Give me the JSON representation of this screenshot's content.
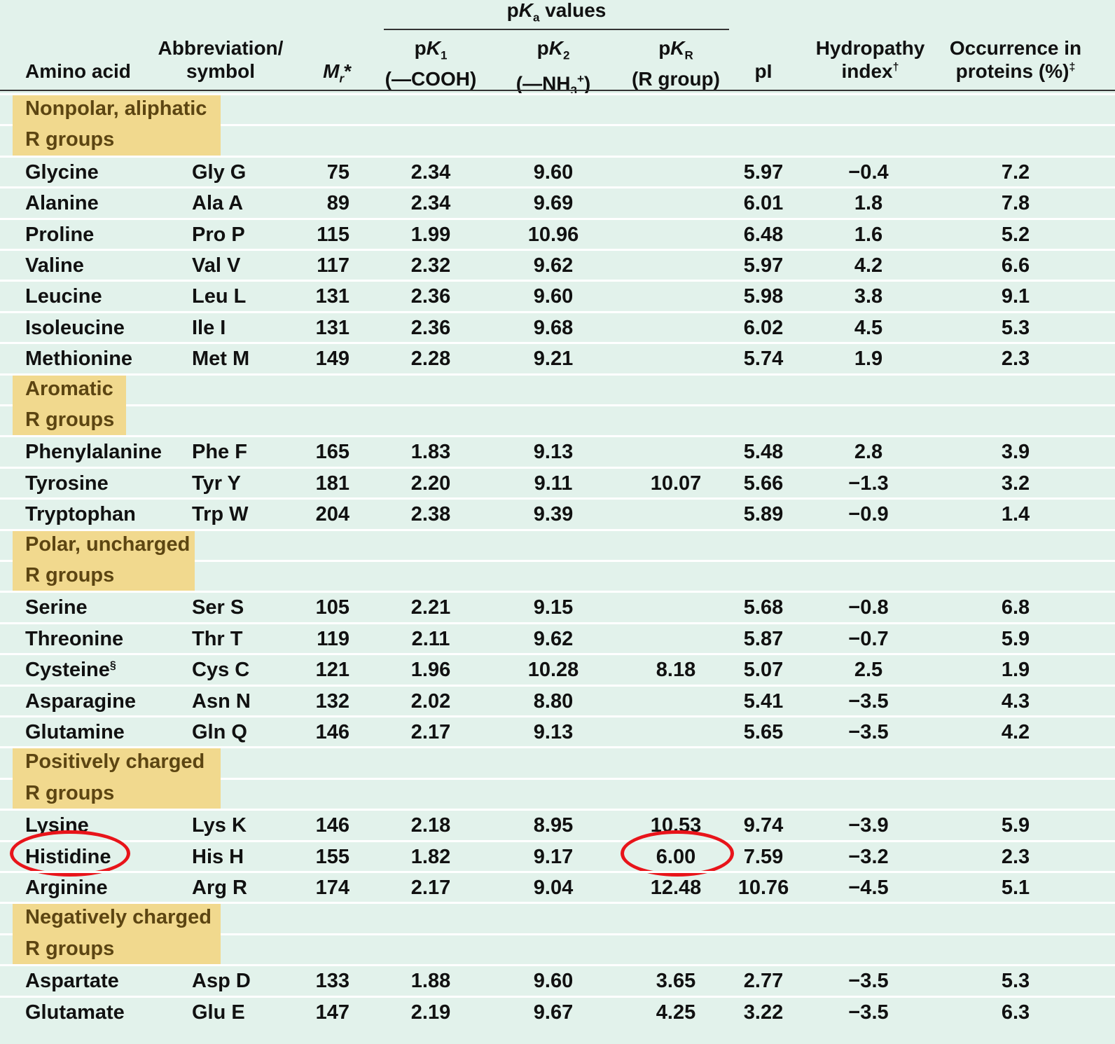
{
  "header": {
    "pka_group": {
      "p": "p",
      "K": "K",
      "sub": "a",
      "rest": " values"
    },
    "amino_acid": "Amino acid",
    "abbreviation_line1": "Abbreviation/",
    "abbreviation_line2": "symbol",
    "mr": {
      "M": "M",
      "sub": "r",
      "star": "*"
    },
    "pk1": {
      "p": "p",
      "K": "K",
      "sub": "1",
      "line2": "(—COOH)"
    },
    "pk2": {
      "p": "p",
      "K": "K",
      "sub": "2",
      "pre": "(—NH",
      "nh_sub": "3",
      "nh_sup": "+",
      "post": ")"
    },
    "pkr": {
      "p": "p",
      "K": "K",
      "sub": "R",
      "line2": "(R group)"
    },
    "pi": "pI",
    "hydropathy_line1": "Hydropathy",
    "hydropathy_line2": "index",
    "hydropathy_mark": "†",
    "occurrence_line1": "Occurrence in",
    "occurrence_line2": "proteins (%)",
    "occurrence_mark": "‡"
  },
  "groups": [
    {
      "line1": "Nonpolar, aliphatic",
      "line2": "R groups",
      "rows": [
        {
          "name": "Glycine",
          "abbr": "Gly G",
          "mr": "75",
          "pk1": "2.34",
          "pk2": "9.60",
          "pkr": "",
          "pi": "5.97",
          "hyd": "−0.4",
          "occ": "7.2"
        },
        {
          "name": "Alanine",
          "abbr": "Ala A",
          "mr": "89",
          "pk1": "2.34",
          "pk2": "9.69",
          "pkr": "",
          "pi": "6.01",
          "hyd": "1.8",
          "occ": "7.8"
        },
        {
          "name": "Proline",
          "abbr": "Pro P",
          "mr": "115",
          "pk1": "1.99",
          "pk2": "10.96",
          "pkr": "",
          "pi": "6.48",
          "hyd": "1.6",
          "occ": "5.2"
        },
        {
          "name": "Valine",
          "abbr": "Val V",
          "mr": "117",
          "pk1": "2.32",
          "pk2": "9.62",
          "pkr": "",
          "pi": "5.97",
          "hyd": "4.2",
          "occ": "6.6"
        },
        {
          "name": "Leucine",
          "abbr": "Leu L",
          "mr": "131",
          "pk1": "2.36",
          "pk2": "9.60",
          "pkr": "",
          "pi": "5.98",
          "hyd": "3.8",
          "occ": "9.1"
        },
        {
          "name": "Isoleucine",
          "abbr": "Ile I",
          "mr": "131",
          "pk1": "2.36",
          "pk2": "9.68",
          "pkr": "",
          "pi": "6.02",
          "hyd": "4.5",
          "occ": "5.3"
        },
        {
          "name": "Methionine",
          "abbr": "Met M",
          "mr": "149",
          "pk1": "2.28",
          "pk2": "9.21",
          "pkr": "",
          "pi": "5.74",
          "hyd": "1.9",
          "occ": "2.3"
        }
      ]
    },
    {
      "line1": "Aromatic",
      "line2": "R groups",
      "rows": [
        {
          "name": "Phenylalanine",
          "abbr": "Phe F",
          "mr": "165",
          "pk1": "1.83",
          "pk2": "9.13",
          "pkr": "",
          "pi": "5.48",
          "hyd": "2.8",
          "occ": "3.9"
        },
        {
          "name": "Tyrosine",
          "abbr": "Tyr Y",
          "mr": "181",
          "pk1": "2.20",
          "pk2": "9.11",
          "pkr": "10.07",
          "pi": "5.66",
          "hyd": "−1.3",
          "occ": "3.2"
        },
        {
          "name": "Tryptophan",
          "abbr": "Trp W",
          "mr": "204",
          "pk1": "2.38",
          "pk2": "9.39",
          "pkr": "",
          "pi": "5.89",
          "hyd": "−0.9",
          "occ": "1.4"
        }
      ]
    },
    {
      "line1": "Polar, uncharged",
      "line2": "R groups",
      "rows": [
        {
          "name": "Serine",
          "abbr": "Ser S",
          "mr": "105",
          "pk1": "2.21",
          "pk2": "9.15",
          "pkr": "",
          "pi": "5.68",
          "hyd": "−0.8",
          "occ": "6.8"
        },
        {
          "name": "Threonine",
          "abbr": "Thr T",
          "mr": "119",
          "pk1": "2.11",
          "pk2": "9.62",
          "pkr": "",
          "pi": "5.87",
          "hyd": "−0.7",
          "occ": "5.9"
        },
        {
          "name": "Cysteine",
          "name_mark": "§",
          "abbr": "Cys C",
          "mr": "121",
          "pk1": "1.96",
          "pk2": "10.28",
          "pkr": "8.18",
          "pi": "5.07",
          "hyd": "2.5",
          "occ": "1.9"
        },
        {
          "name": "Asparagine",
          "abbr": "Asn N",
          "mr": "132",
          "pk1": "2.02",
          "pk2": "8.80",
          "pkr": "",
          "pi": "5.41",
          "hyd": "−3.5",
          "occ": "4.3"
        },
        {
          "name": "Glutamine",
          "abbr": "Gln Q",
          "mr": "146",
          "pk1": "2.17",
          "pk2": "9.13",
          "pkr": "",
          "pi": "5.65",
          "hyd": "−3.5",
          "occ": "4.2"
        }
      ]
    },
    {
      "line1": "Positively charged",
      "line2": "R groups",
      "rows": [
        {
          "name": "Lysine",
          "abbr": "Lys K",
          "mr": "146",
          "pk1": "2.18",
          "pk2": "8.95",
          "pkr": "10.53",
          "pi": "9.74",
          "hyd": "−3.9",
          "occ": "5.9"
        },
        {
          "name": "Histidine",
          "abbr": "His H",
          "mr": "155",
          "pk1": "1.82",
          "pk2": "9.17",
          "pkr": "6.00",
          "pi": "7.59",
          "hyd": "−3.2",
          "occ": "2.3",
          "circled": [
            "name",
            "pkr"
          ]
        },
        {
          "name": "Arginine",
          "abbr": "Arg R",
          "mr": "174",
          "pk1": "2.17",
          "pk2": "9.04",
          "pkr": "12.48",
          "pi": "10.76",
          "hyd": "−4.5",
          "occ": "5.1"
        }
      ]
    },
    {
      "line1": "Negatively charged",
      "line2": "R groups",
      "rows": [
        {
          "name": "Aspartate",
          "abbr": "Asp D",
          "mr": "133",
          "pk1": "1.88",
          "pk2": "9.60",
          "pkr": "3.65",
          "pi": "2.77",
          "hyd": "−3.5",
          "occ": "5.3"
        },
        {
          "name": "Glutamate",
          "abbr": "Glu E",
          "mr": "147",
          "pk1": "2.19",
          "pk2": "9.67",
          "pkr": "4.25",
          "pi": "3.22",
          "hyd": "−3.5",
          "occ": "6.3"
        }
      ]
    }
  ],
  "colors": {
    "background": "#e2f2eb",
    "group_highlight": "#f1d98e",
    "group_text": "#5c4512",
    "circle_annotation": "#e8141a",
    "row_divider": "#ffffff"
  }
}
